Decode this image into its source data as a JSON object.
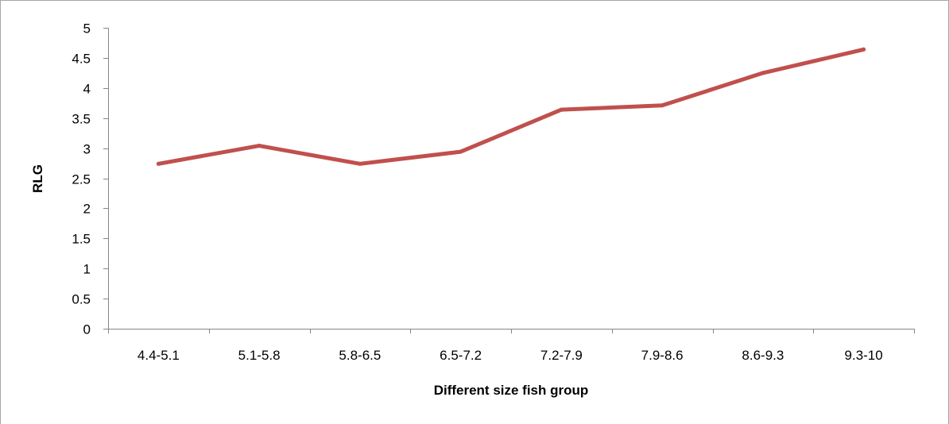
{
  "chart_data": {
    "type": "line",
    "title": "",
    "xlabel": "Different size fish group",
    "ylabel": "RLG",
    "categories": [
      "4.4-5.1",
      "5.1-5.8",
      "5.8-6.5",
      "6.5-7.2",
      "7.2-7.9",
      "7.9-8.6",
      "8.6-9.3",
      "9.3-10"
    ],
    "series": [
      {
        "values": [
          2.74,
          3.04,
          2.74,
          2.94,
          3.64,
          3.71,
          4.25,
          4.64
        ],
        "color": "#c0504d"
      }
    ],
    "ylim": [
      0,
      5
    ],
    "yticks": [
      "0",
      "0.5",
      "1",
      "1.5",
      "2",
      "2.5",
      "3",
      "3.5",
      "4",
      "4.5",
      "5"
    ],
    "grid": false,
    "legend": "none"
  }
}
